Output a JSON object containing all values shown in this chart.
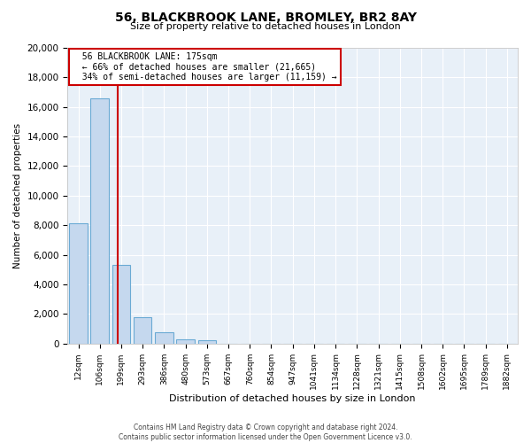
{
  "title_line1": "56, BLACKBROOK LANE, BROMLEY, BR2 8AY",
  "title_line2": "Size of property relative to detached houses in London",
  "xlabel": "Distribution of detached houses by size in London",
  "ylabel": "Number of detached properties",
  "bar_labels": [
    "12sqm",
    "106sqm",
    "199sqm",
    "293sqm",
    "386sqm",
    "480sqm",
    "573sqm",
    "667sqm",
    "760sqm",
    "854sqm",
    "947sqm",
    "1041sqm",
    "1134sqm",
    "1228sqm",
    "1321sqm",
    "1415sqm",
    "1508sqm",
    "1602sqm",
    "1695sqm",
    "1789sqm",
    "1882sqm"
  ],
  "bar_values": [
    8100,
    16600,
    5300,
    1800,
    750,
    280,
    230,
    0,
    0,
    0,
    0,
    0,
    0,
    0,
    0,
    0,
    0,
    0,
    0,
    0,
    0
  ],
  "bar_color": "#c5d8ee",
  "bar_edge_color": "#6aaad4",
  "figure_bg_color": "#ffffff",
  "plot_bg_color": "#e8f0f8",
  "grid_color": "#ffffff",
  "ylim": [
    0,
    20000
  ],
  "yticks": [
    0,
    2000,
    4000,
    6000,
    8000,
    10000,
    12000,
    14000,
    16000,
    18000,
    20000
  ],
  "property_line_x": 1.85,
  "property_line_color": "#cc0000",
  "annotation_text_line1": "56 BLACKBROOK LANE: 175sqm",
  "annotation_text_line2": "← 66% of detached houses are smaller (21,665)",
  "annotation_text_line3": "34% of semi-detached houses are larger (11,159) →",
  "annotation_box_color": "#ffffff",
  "annotation_border_color": "#cc0000",
  "footer_line1": "Contains HM Land Registry data © Crown copyright and database right 2024.",
  "footer_line2": "Contains public sector information licensed under the Open Government Licence v3.0."
}
